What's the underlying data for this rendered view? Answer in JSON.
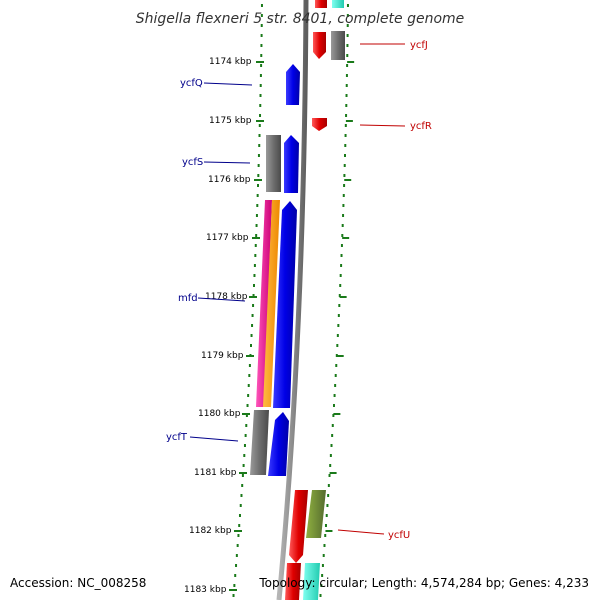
{
  "title": "Shigella flexneri 5 str. 8401, complete genome",
  "accession": "Accession: NC_008258",
  "topology": "Topology: circular; Length: 4,574,284 bp; Genes: 4,233",
  "kbp_labels": [
    "1174 kbp",
    "1175 kbp",
    "1176 kbp",
    "1177 kbp",
    "1178 kbp",
    "1179 kbp",
    "1180 kbp",
    "1181 kbp",
    "1182 kbp",
    "1183 kbp"
  ],
  "genes_left": [
    "ycfQ",
    "ycfS",
    "mfd",
    "ycfT"
  ],
  "genes_right": [
    "ycfJ",
    "ycfR",
    "ycfU"
  ],
  "colors": {
    "red": "#e00000",
    "blue": "#0000e6",
    "gray": "#6e6e6e",
    "magenta": "#ee1199",
    "orange": "#ff9900",
    "olive": "#6b8e23",
    "cyan": "#2ee6c8",
    "backbone": "#8c8c8c",
    "tick_green": "#1a7a1a"
  }
}
